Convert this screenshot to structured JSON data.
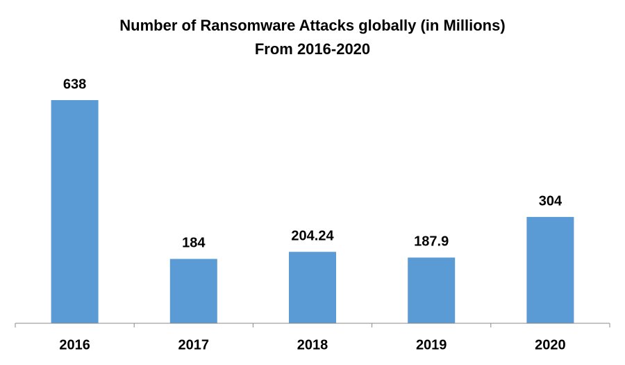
{
  "chart_data": {
    "type": "bar",
    "title": "Number of Ransomware Attacks globally (in Millions)",
    "subtitle": "From 2016-2020",
    "categories": [
      "2016",
      "2017",
      "2018",
      "2019",
      "2020"
    ],
    "values": [
      638,
      184,
      204.24,
      187.9,
      304
    ],
    "color": "#5b9bd5"
  }
}
